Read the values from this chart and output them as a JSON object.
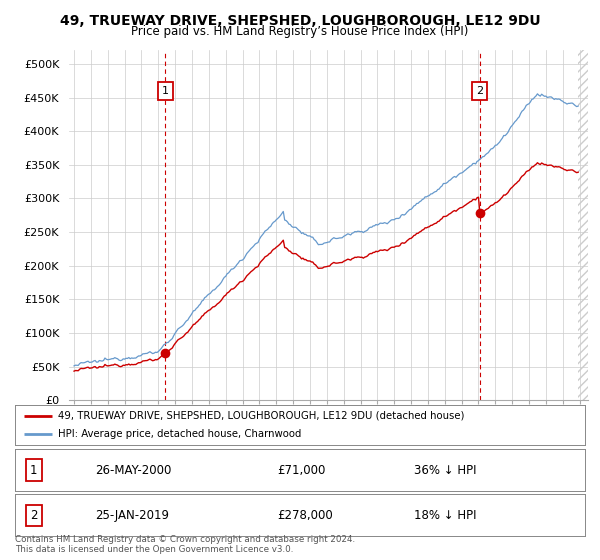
{
  "title": "49, TRUEWAY DRIVE, SHEPSHED, LOUGHBOROUGH, LE12 9DU",
  "subtitle": "Price paid vs. HM Land Registry’s House Price Index (HPI)",
  "sale1_date": "26-MAY-2000",
  "sale1_price": 71000,
  "sale1_pct": "36% ↓ HPI",
  "sale2_date": "25-JAN-2019",
  "sale2_price": 278000,
  "sale2_pct": "18% ↓ HPI",
  "legend_line1": "49, TRUEWAY DRIVE, SHEPSHED, LOUGHBOROUGH, LE12 9DU (detached house)",
  "legend_line2": "HPI: Average price, detached house, Charnwood",
  "footer": "Contains HM Land Registry data © Crown copyright and database right 2024.\nThis data is licensed under the Open Government Licence v3.0.",
  "line_color_red": "#cc0000",
  "line_color_blue": "#6699cc",
  "background_color": "#ffffff",
  "grid_color": "#cccccc",
  "ylim": [
    0,
    520000
  ],
  "yticks": [
    0,
    50000,
    100000,
    150000,
    200000,
    250000,
    300000,
    350000,
    400000,
    450000,
    500000
  ],
  "ytick_labels": [
    "£0",
    "£50K",
    "£100K",
    "£150K",
    "£200K",
    "£250K",
    "£300K",
    "£350K",
    "£400K",
    "£450K",
    "£500K"
  ],
  "sale1_year": 2000.42,
  "sale2_year": 2019.07,
  "xmin": 1994.7,
  "xmax": 2025.5
}
